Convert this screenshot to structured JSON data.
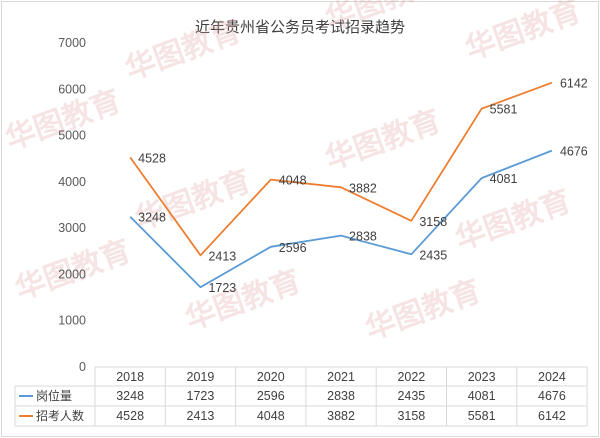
{
  "chart_data": {
    "type": "line",
    "title": "近年贵州省公务员考试招录趋势",
    "categories": [
      "2018",
      "2019",
      "2020",
      "2021",
      "2022",
      "2023",
      "2024"
    ],
    "ylim": [
      0,
      7000
    ],
    "yticks": [
      0,
      1000,
      2000,
      3000,
      4000,
      5000,
      6000,
      7000
    ],
    "grid": false,
    "legend": "data-table",
    "series": [
      {
        "name": "岗位量",
        "color": "#5b9bd5",
        "values": [
          3248,
          1723,
          2596,
          2838,
          2435,
          4081,
          4676
        ]
      },
      {
        "name": "招考人数",
        "color": "#ed7d31",
        "values": [
          4528,
          2413,
          4048,
          3882,
          3158,
          5581,
          6142
        ]
      }
    ]
  },
  "watermark": "华图教育"
}
